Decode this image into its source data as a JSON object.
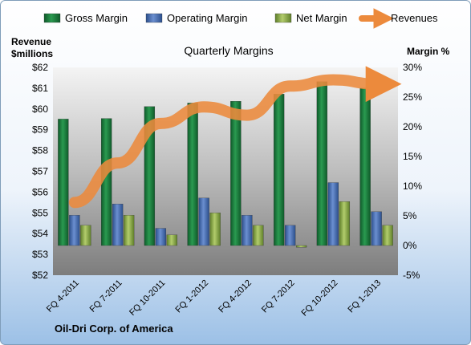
{
  "chart_data": {
    "type": "bar",
    "title": "Quarterly Margins",
    "left_axis_label_line1": "Revenue",
    "left_axis_label_line2": "$millions",
    "right_axis_label": "Margin %",
    "footer": "Oil-Dri Corp. of America",
    "categories": [
      "FQ 4-2011",
      "FQ 7-2011",
      "FQ 10-2011",
      "FQ 1-2012",
      "FQ 4-2012",
      "FQ 7-2012",
      "FQ 10-2012",
      "FQ 1-2013"
    ],
    "left_ylim": [
      52,
      62
    ],
    "left_ticks": [
      "$52",
      "$53",
      "$54",
      "$55",
      "$56",
      "$57",
      "$58",
      "$59",
      "$60",
      "$61",
      "$62"
    ],
    "right_ylim": [
      -5,
      30
    ],
    "right_ticks": [
      "-5%",
      "0%",
      "5%",
      "10%",
      "15%",
      "20%",
      "25%",
      "30%"
    ],
    "series": [
      {
        "name": "Gross Margin",
        "axis": "right",
        "kind": "bar",
        "color": "#1e7d3e",
        "values": [
          21.3,
          21.4,
          23.4,
          24.0,
          24.3,
          25.5,
          27.6,
          26.5
        ]
      },
      {
        "name": "Operating Margin",
        "axis": "right",
        "kind": "bar",
        "color": "#4a72b8",
        "values": [
          5.1,
          7.0,
          2.9,
          8.0,
          5.1,
          3.4,
          10.6,
          5.7
        ]
      },
      {
        "name": "Net Margin",
        "axis": "right",
        "kind": "bar",
        "color": "#8fb04a",
        "values": [
          3.4,
          5.1,
          1.8,
          5.5,
          3.4,
          -0.3,
          7.4,
          3.4
        ]
      },
      {
        "name": "Revenues",
        "axis": "left",
        "kind": "line",
        "color": "#ec8a3c",
        "values": [
          55.5,
          57.4,
          59.3,
          60.1,
          59.7,
          61.1,
          61.4,
          61.2
        ]
      }
    ],
    "legend_position": "top",
    "grid": false
  },
  "colors": {
    "plot_top": "#f4f4f4",
    "plot_bottom": "#7d7d7d",
    "page_top": "#ffffff",
    "page_bottom": "#9cc0e6"
  }
}
